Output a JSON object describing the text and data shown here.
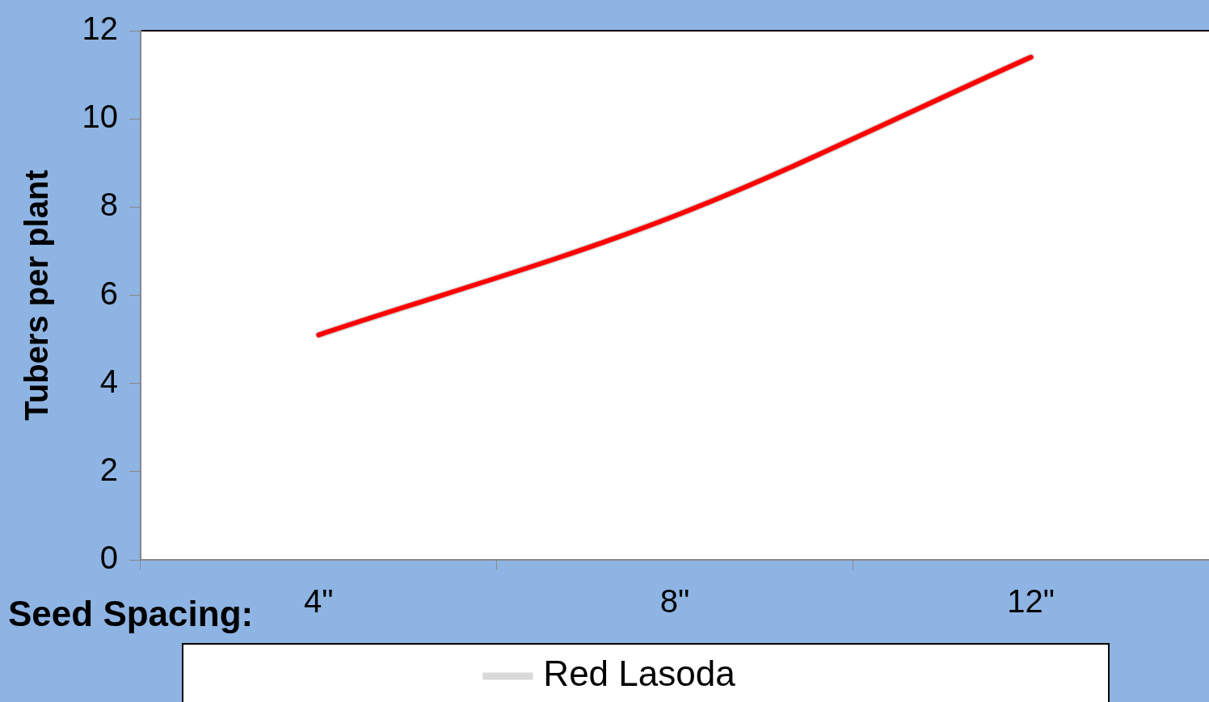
{
  "chart_data": {
    "type": "line",
    "xlabel": "Seed Spacing:",
    "ylabel": "Tubers per plant",
    "categories": [
      "4\"",
      "8\"",
      "12\""
    ],
    "series": [
      {
        "name": "Red Lasoda",
        "color": "#d9d9d9",
        "values": [
          5.1,
          7.8,
          11.4
        ]
      },
      {
        "color": "#ff0000",
        "values": [
          5.1,
          7.8,
          11.4
        ]
      }
    ],
    "ylim": [
      0,
      12
    ],
    "yticks": [
      0,
      2,
      4,
      6,
      8,
      10,
      12
    ],
    "grid": false,
    "legend": "bottom",
    "marker": "none",
    "line_style": "solid"
  }
}
